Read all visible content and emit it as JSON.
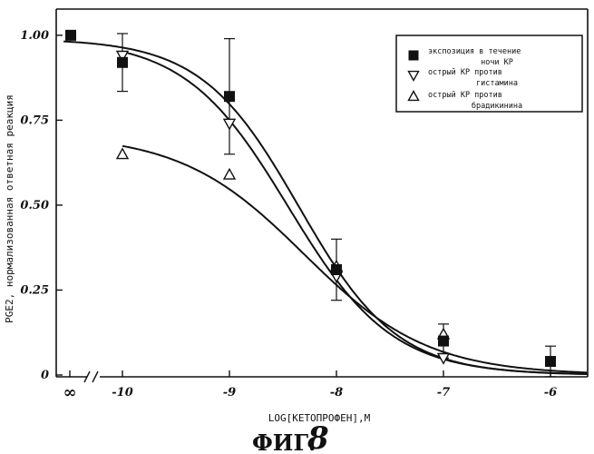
{
  "chart_data": {
    "type": "scatter",
    "title": "",
    "xlabel": "LOG[КЕТОПРОФЕН],М",
    "ylabel": "PGE2, нормализованная ответная реакция",
    "xlim": [
      -10.5,
      -5.7
    ],
    "ylim": [
      0,
      1.05
    ],
    "x_ticks": [
      {
        "value": -10,
        "label": "-10"
      },
      {
        "value": -9,
        "label": "-9"
      },
      {
        "value": -8,
        "label": "-8"
      },
      {
        "value": -7,
        "label": "-7"
      },
      {
        "value": -6,
        "label": "-6"
      }
    ],
    "x_infinity_label": "∞",
    "y_ticks": [
      {
        "value": 0,
        "label": "0"
      },
      {
        "value": 0.25,
        "label": "0.25"
      },
      {
        "value": 0.5,
        "label": "0.50"
      },
      {
        "value": 0.75,
        "label": "0.75"
      },
      {
        "value": 1.0,
        "label": "1.00"
      }
    ],
    "axis_break": true,
    "grid": false,
    "legend_position": "top-right",
    "series": [
      {
        "name": "экспозиция в течение ночи КР",
        "marker": "filled-square",
        "infinity_point": 1.0,
        "x": [
          -10,
          -9,
          -8,
          -7,
          -6
        ],
        "y": [
          0.92,
          0.82,
          0.31,
          0.1,
          0.04
        ],
        "error": [
          0.085,
          0.17,
          0.09,
          0.05,
          0.045
        ],
        "curve": {
          "top": 0.99,
          "bottom": 0.0,
          "x50": -8.35,
          "hill": 0.95
        }
      },
      {
        "name": "острый КР против гистамина",
        "marker": "open-down-triangle",
        "x": [
          -10,
          -9,
          -8,
          -7
        ],
        "y": [
          0.94,
          0.74,
          0.29,
          0.05
        ],
        "curve": {
          "top": 0.99,
          "bottom": 0.0,
          "x50": -8.45,
          "hill": 0.9
        }
      },
      {
        "name": "острый КР против брадикинина",
        "marker": "open-up-triangle",
        "x": [
          -10,
          -9,
          -8,
          -7
        ],
        "y": [
          0.65,
          0.59,
          0.32,
          0.12
        ],
        "curve": {
          "top": 0.71,
          "bottom": 0.0,
          "x50": -8.3,
          "hill": 0.75
        }
      }
    ]
  },
  "caption": {
    "prefix": "ФИГ.",
    "number": "8"
  }
}
